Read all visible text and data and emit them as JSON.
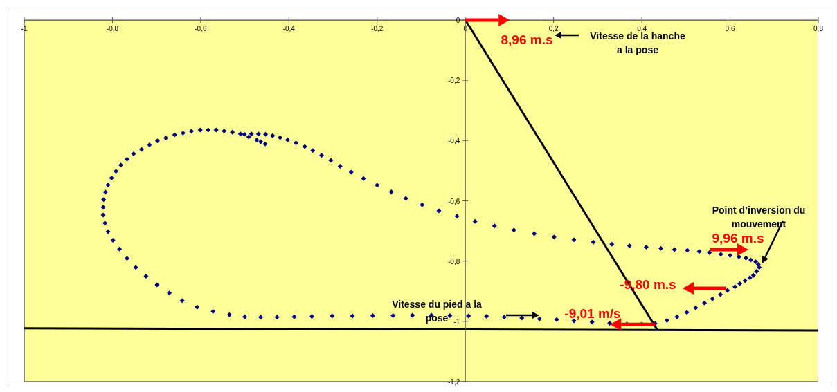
{
  "chart_data": {
    "type": "scatter",
    "xlim": [
      -1,
      0.8
    ],
    "ylim": [
      -1.2,
      0
    ],
    "xticks": [
      {
        "value": -1,
        "label": "-1"
      },
      {
        "value": -0.8,
        "label": "-0,8"
      },
      {
        "value": -0.6,
        "label": "-0,6"
      },
      {
        "value": -0.4,
        "label": "-0,4"
      },
      {
        "value": -0.2,
        "label": "-0,2"
      },
      0,
      {
        "value": 0.2,
        "label": "0,2"
      },
      {
        "value": 0.4,
        "label": "0,4"
      },
      {
        "value": 0.6,
        "label": "0,6"
      },
      {
        "value": 0.8,
        "label": "0,8"
      }
    ],
    "yticks": [
      0,
      {
        "value": -0.2,
        "label": "-0,2"
      },
      {
        "value": -0.4,
        "label": "-0,4"
      },
      {
        "value": -0.6,
        "label": "-0,6"
      },
      {
        "value": -0.8,
        "label": "-0,8"
      },
      {
        "value": -1,
        "label": "-1"
      },
      {
        "value": -1.2,
        "label": "-1,2"
      }
    ],
    "series": [
      {
        "color": "#000080",
        "marker": "diamond",
        "x": [
          -0.608,
          -0.572,
          -0.535,
          -0.5,
          -0.464,
          -0.427,
          -0.388,
          -0.348,
          -0.302,
          -0.256,
          -0.21,
          -0.164,
          -0.12,
          -0.077,
          -0.035,
          0.007,
          0.048,
          0.088,
          0.128,
          0.168,
          0.207,
          0.246,
          0.287,
          0.327,
          0.366,
          0.4,
          0.43,
          0.457,
          0.48,
          0.502,
          0.522,
          0.542,
          0.56,
          0.578,
          0.594,
          0.611,
          0.622,
          0.634,
          0.645,
          0.653,
          0.66,
          0.666,
          0.664,
          0.658,
          0.647,
          0.636,
          0.62,
          0.6,
          0.579,
          0.553,
          0.53,
          0.503,
          0.474,
          0.443,
          0.41,
          0.372,
          0.332,
          0.29,
          0.246,
          0.201,
          0.156,
          0.11,
          0.066,
          0.022,
          -0.019,
          -0.06,
          -0.098,
          -0.135,
          -0.168,
          -0.2,
          -0.231,
          -0.259,
          -0.284,
          -0.305,
          -0.326,
          -0.346,
          -0.364,
          -0.384,
          -0.403,
          -0.42,
          -0.437,
          -0.453,
          -0.469,
          -0.485,
          -0.501,
          -0.51,
          -0.528,
          -0.547,
          -0.565,
          -0.583,
          -0.601,
          -0.621,
          -0.64,
          -0.659,
          -0.679,
          -0.698,
          -0.716,
          -0.734,
          -0.752,
          -0.767,
          -0.781,
          -0.792,
          -0.802,
          -0.81,
          -0.816,
          -0.82,
          -0.821,
          -0.821,
          -0.817,
          -0.81,
          -0.799,
          -0.784,
          -0.767,
          -0.747,
          -0.724,
          -0.699,
          -0.671,
          -0.642,
          -0.491,
          -0.473,
          -0.464,
          -0.454
        ],
        "values": [
          -0.953,
          -0.967,
          -0.978,
          -0.985,
          -0.986,
          -0.986,
          -0.985,
          -0.984,
          -0.982,
          -0.982,
          -0.981,
          -0.981,
          -0.98,
          -0.98,
          -0.981,
          -0.982,
          -0.983,
          -0.986,
          -0.989,
          -0.992,
          -0.994,
          -0.998,
          -1.002,
          -1.006,
          -1.009,
          -1.009,
          -1.007,
          -0.997,
          -0.985,
          -0.97,
          -0.955,
          -0.939,
          -0.925,
          -0.911,
          -0.897,
          -0.885,
          -0.875,
          -0.865,
          -0.855,
          -0.847,
          -0.834,
          -0.821,
          -0.811,
          -0.802,
          -0.796,
          -0.79,
          -0.786,
          -0.781,
          -0.777,
          -0.772,
          -0.768,
          -0.764,
          -0.762,
          -0.758,
          -0.754,
          -0.749,
          -0.744,
          -0.737,
          -0.729,
          -0.72,
          -0.709,
          -0.697,
          -0.683,
          -0.668,
          -0.651,
          -0.633,
          -0.613,
          -0.592,
          -0.57,
          -0.548,
          -0.526,
          -0.505,
          -0.485,
          -0.466,
          -0.449,
          -0.433,
          -0.42,
          -0.408,
          -0.398,
          -0.39,
          -0.384,
          -0.379,
          -0.378,
          -0.378,
          -0.379,
          -0.378,
          -0.372,
          -0.368,
          -0.365,
          -0.365,
          -0.365,
          -0.369,
          -0.375,
          -0.381,
          -0.391,
          -0.401,
          -0.414,
          -0.429,
          -0.444,
          -0.462,
          -0.481,
          -0.502,
          -0.524,
          -0.547,
          -0.571,
          -0.596,
          -0.621,
          -0.647,
          -0.674,
          -0.702,
          -0.731,
          -0.76,
          -0.791,
          -0.821,
          -0.85,
          -0.879,
          -0.906,
          -0.931,
          -0.388,
          -0.398,
          -0.404,
          -0.411
        ]
      },
      {
        "type": "line",
        "color": "#000000",
        "marker": "none",
        "line_style": "solid",
        "x": [
          0,
          0.435
        ],
        "values": [
          0,
          -1.028
        ]
      },
      {
        "type": "line",
        "color": "#000000",
        "marker": "none",
        "line_style": "solid",
        "x": [
          -1,
          0.8
        ],
        "values": [
          -1.023,
          -1.03
        ]
      }
    ],
    "annotations": [
      {
        "text": "8,96 m.s",
        "x": 0,
        "y": 0
      },
      "Vitesse de la hanche a la pose",
      "Point d’inversion du mouvement",
      "9,96 m.s",
      "-9,80 m.s",
      "Vitesse du pied a la pose",
      {
        "text": "-9,01 m/s",
        "x": 0.43,
        "y": -1.01
      }
    ]
  }
}
